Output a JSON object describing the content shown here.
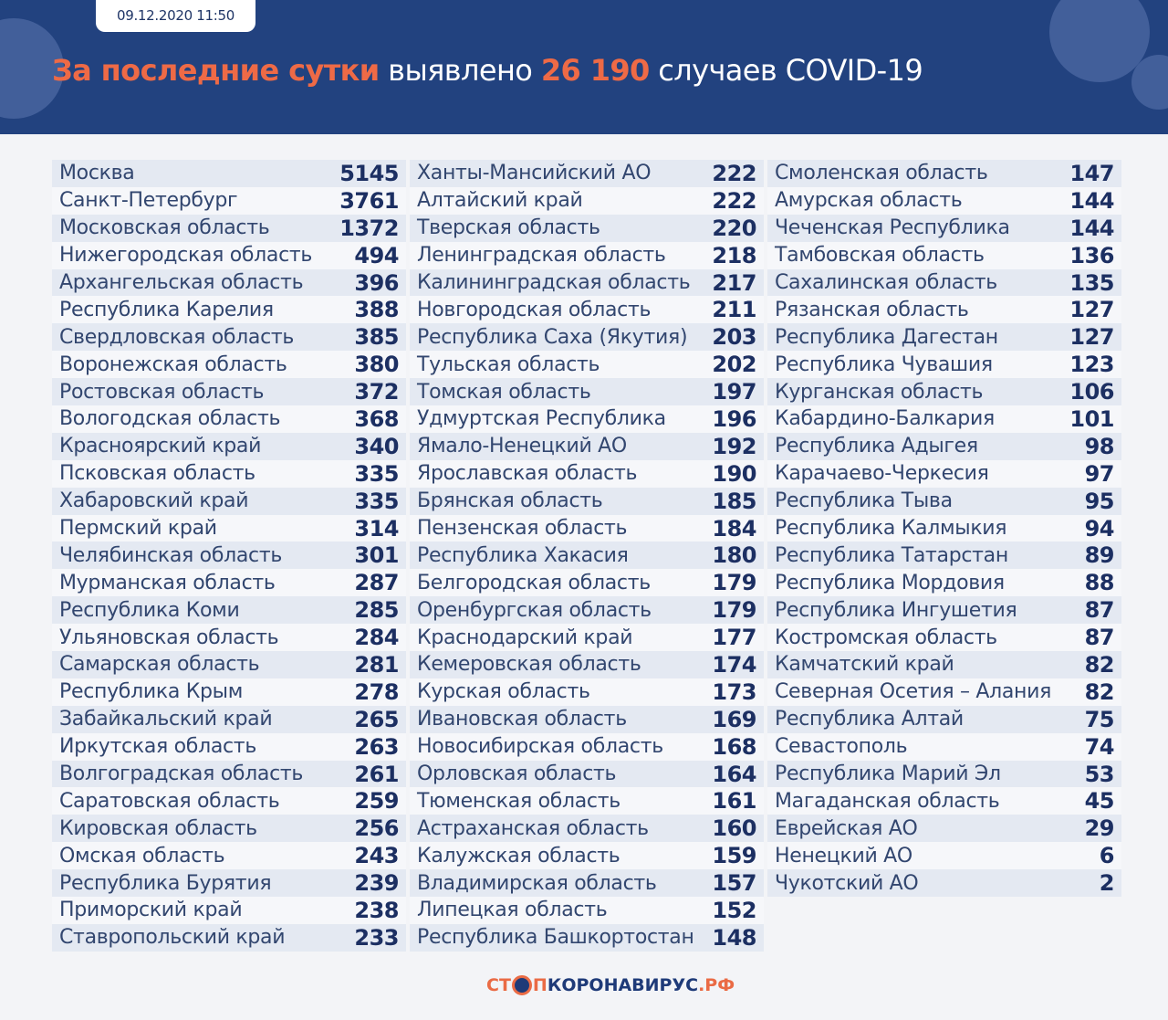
{
  "header": {
    "date": "09.12.2020 11:50",
    "title_part1": "За последние сутки",
    "title_part2": " выявлено ",
    "title_number": "26 190",
    "title_part3": " случаев COVID-19"
  },
  "colors": {
    "header_bg": "#22427f",
    "accent": "#ee6a46",
    "number": "#1c2f62"
  },
  "columns": [
    [
      [
        "Москва",
        "5145"
      ],
      [
        "Санкт-Петербург",
        "3761"
      ],
      [
        "Московская область",
        "1372"
      ],
      [
        "Нижегородская область",
        "494"
      ],
      [
        "Архангельская область",
        "396"
      ],
      [
        "Республика Карелия",
        "388"
      ],
      [
        "Свердловская область",
        "385"
      ],
      [
        "Воронежская область",
        "380"
      ],
      [
        "Ростовская область",
        "372"
      ],
      [
        "Вологодская область",
        "368"
      ],
      [
        "Красноярский край",
        "340"
      ],
      [
        "Псковская область",
        "335"
      ],
      [
        "Хабаровский край",
        "335"
      ],
      [
        "Пермский край",
        "314"
      ],
      [
        "Челябинская область",
        "301"
      ],
      [
        "Мурманская область",
        "287"
      ],
      [
        "Республика Коми",
        "285"
      ],
      [
        "Ульяновская область",
        "284"
      ],
      [
        "Самарская область",
        "281"
      ],
      [
        "Республика Крым",
        "278"
      ],
      [
        "Забайкальский край",
        "265"
      ],
      [
        "Иркутская область",
        "263"
      ],
      [
        "Волгоградская область",
        "261"
      ],
      [
        "Саратовская область",
        "259"
      ],
      [
        "Кировская область",
        "256"
      ],
      [
        "Омская область",
        "243"
      ],
      [
        "Республика Бурятия",
        "239"
      ],
      [
        "Приморский край",
        "238"
      ],
      [
        "Ставропольский край",
        "233"
      ]
    ],
    [
      [
        "Ханты-Мансийский  АО",
        "222"
      ],
      [
        "Алтайский край",
        "222"
      ],
      [
        "Тверская область",
        "220"
      ],
      [
        "Ленинградская область",
        "218"
      ],
      [
        "Калининградская область",
        "217"
      ],
      [
        "Новгородская область",
        "211"
      ],
      [
        "Республика Саха (Якутия)",
        "203"
      ],
      [
        "Тульская область",
        "202"
      ],
      [
        "Томская область",
        "197"
      ],
      [
        "Удмуртская Республика",
        "196"
      ],
      [
        "Ямало-Ненецкий АО",
        "192"
      ],
      [
        "Ярославская область",
        "190"
      ],
      [
        "Брянская область",
        "185"
      ],
      [
        "Пензенская область",
        "184"
      ],
      [
        "Республика Хакасия",
        "180"
      ],
      [
        "Белгородская область",
        "179"
      ],
      [
        "Оренбургская область",
        "179"
      ],
      [
        "Краснодарский край",
        "177"
      ],
      [
        "Кемеровская область",
        "174"
      ],
      [
        "Курская область",
        "173"
      ],
      [
        "Ивановская область",
        "169"
      ],
      [
        "Новосибирская область",
        "168"
      ],
      [
        "Орловская область",
        "164"
      ],
      [
        "Тюменская область",
        "161"
      ],
      [
        "Астраханская область",
        "160"
      ],
      [
        "Калужская область",
        "159"
      ],
      [
        "Владимирская область",
        "157"
      ],
      [
        "Липецкая область",
        "152"
      ],
      [
        "Республика Башкортостан",
        "148"
      ]
    ],
    [
      [
        "Смоленская область",
        "147"
      ],
      [
        "Амурская область",
        "144"
      ],
      [
        "Чеченская Республика",
        "144"
      ],
      [
        "Тамбовская область",
        "136"
      ],
      [
        "Сахалинская область",
        "135"
      ],
      [
        "Рязанская область",
        "127"
      ],
      [
        "Республика Дагестан",
        "127"
      ],
      [
        "Республика Чувашия",
        "123"
      ],
      [
        "Курганская область",
        "106"
      ],
      [
        "Кабардино-Балкария",
        "101"
      ],
      [
        "Республика Адыгея",
        "98"
      ],
      [
        "Карачаево-Черкесия",
        "97"
      ],
      [
        "Республика Тыва",
        "95"
      ],
      [
        "Республика Калмыкия",
        "94"
      ],
      [
        "Республика Татарстан",
        "89"
      ],
      [
        "Республика Мордовия",
        "88"
      ],
      [
        "Республика Ингушетия",
        "87"
      ],
      [
        "Костромская область",
        "87"
      ],
      [
        "Камчатский край",
        "82"
      ],
      [
        "Северная Осетия – Алания",
        "82"
      ],
      [
        "Республика Алтай",
        "75"
      ],
      [
        "Севастополь",
        "74"
      ],
      [
        "Республика Марий Эл",
        "53"
      ],
      [
        "Магаданская область",
        "45"
      ],
      [
        "Еврейская АО",
        "29"
      ],
      [
        "Ненецкий  АО",
        "6"
      ],
      [
        "Чукотский  АО",
        "2"
      ]
    ]
  ],
  "footer": {
    "logo_part1": "СТ",
    "logo_part2": "П",
    "logo_part3": "КОРОНАВИРУС",
    "logo_part4": ".РФ"
  }
}
